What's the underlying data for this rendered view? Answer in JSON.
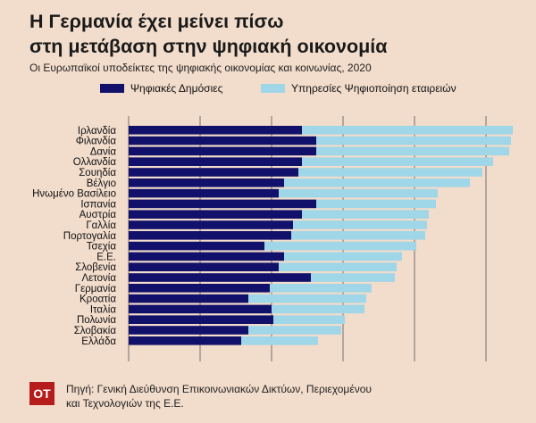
{
  "header": {
    "title_line1": "Η Γερμανία έχει μείνει πίσω",
    "title_line2": "στη μετάβαση στην ψηφιακή οικονομία",
    "subtitle": "Οι Ευρωπαϊκοί υποδείκτες της ψηφιακής οικονομίας και κοινωνίας, 2020"
  },
  "legend": {
    "series1": "Ψηφιακές Δημόσιες",
    "series2": "Υπηρεσίες Ψηφιοποίηση εταιρειών"
  },
  "colors": {
    "series1": "#11116b",
    "series2": "#9fd6e8",
    "background": "#f2dccb",
    "badge": "#b71c1c"
  },
  "source": {
    "badge": "ΟΤ",
    "line1": "Πηγή: Γενική Διεύθυνση Επικοινωνιακών Δικτύων, Περιεχομένου",
    "line2": "και Τεχνολογιών της Ε.Ε."
  },
  "chart_data": {
    "type": "bar",
    "orientation": "horizontal",
    "stacked": true,
    "grid": true,
    "xlim": [
      0,
      110
    ],
    "categories": [
      "Ιρλανδία",
      "Φιλανδία",
      "Δανία",
      "Ολλανδία",
      "Σουηδία",
      "Βέλγιο",
      "Ηνωμένο Βασίλειο",
      "Ισπανία",
      "Αυστρία",
      "Γαλλία",
      "Πορτογαλία",
      "Τσεχία",
      "Ε.Ε.",
      "Σλοβενία",
      "Λετονία",
      "Γερμανία",
      "Κροατία",
      "Ιταλία",
      "Πολωνία",
      "Σλοβακία",
      "Ελλάδα"
    ],
    "series": [
      {
        "name": "Ψηφιακές Δημόσιες",
        "values": [
          48.5,
          52.5,
          52.5,
          48.5,
          47.5,
          43.5,
          42,
          52.5,
          48.5,
          46,
          45.5,
          38,
          43.5,
          42,
          51,
          39.5,
          33.5,
          40,
          40.5,
          33.5,
          31.5
        ]
      },
      {
        "name": "Υπηρεσίες Ψηφιοποίηση εταιρειών",
        "values": [
          59,
          54.5,
          54,
          53.5,
          51.5,
          52,
          44.5,
          33.5,
          35.5,
          37.5,
          37.5,
          42.5,
          33,
          33,
          23.5,
          28.5,
          33,
          26,
          20,
          26,
          21.5
        ]
      }
    ]
  }
}
